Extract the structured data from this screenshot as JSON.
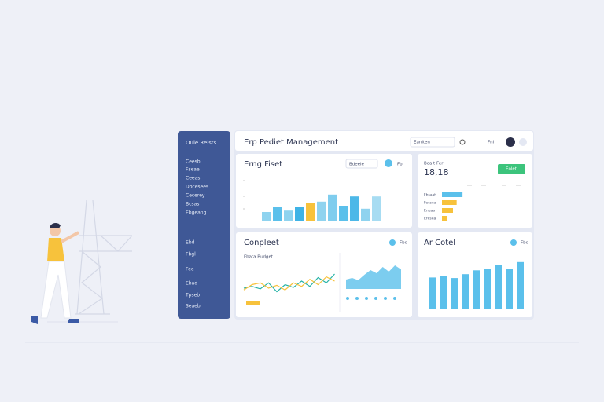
{
  "sidebar": {
    "title": "Oule Relsts",
    "items": [
      "Ceesb",
      "Fseae",
      "Ceeas",
      "Dbcesees",
      "Cecerey",
      "Bcsas",
      "Ebgeang"
    ],
    "lower_items": [
      "Ebd",
      "Fbgl",
      "Fee",
      "Ebad",
      "Tpseb",
      "Seaeb"
    ]
  },
  "header": {
    "title": "Erp Pediet Management",
    "search": "Eanlten",
    "button": "Fnl"
  },
  "cards": [
    {
      "title": "Erng Fiset",
      "dropdown": "Bdeele",
      "button": "Fbl",
      "chart": {
        "type": "bar",
        "ylim": [
          0,
          100
        ],
        "values": [
          20,
          30,
          23,
          30,
          40,
          42,
          57,
          33,
          53,
          27,
          53
        ],
        "colors": [
          "#8fd3ef",
          "#5bc0eb",
          "#8fd3ef",
          "#3fb3e6",
          "#f7c23c",
          "#8fd3ef",
          "#7fcdee",
          "#5bc0eb",
          "#4db8e8",
          "#8fd3ef",
          "#a7dcf2"
        ]
      }
    },
    {
      "title": "Boalt Fer",
      "value": "18,18",
      "button": "Eolet",
      "table": {
        "ylim": [
          0,
          30
        ],
        "rows": [
          {
            "label": "Fbsaat",
            "value": 28,
            "color": "#5bc0eb"
          },
          {
            "label": "Fecsea",
            "value": 20,
            "color": "#f7c23c"
          },
          {
            "label": "Eneaa",
            "value": 15,
            "color": "#f7c23c"
          },
          {
            "label": "Eresea",
            "value": 7,
            "color": "#f7c23c"
          }
        ]
      }
    },
    {
      "title": "Conpleet",
      "button": "Fbd",
      "subtitle": "Fbata Budget",
      "chart": {
        "type": "line",
        "ylim": [
          0,
          100
        ],
        "series": [
          {
            "color": "#26b3a6",
            "values": [
              40,
              45,
              38,
              55,
              30,
              50,
              42,
              60,
              45,
              70,
              55,
              80
            ]
          },
          {
            "color": "#f7c23c",
            "values": [
              35,
              50,
              55,
              40,
              48,
              35,
              55,
              45,
              65,
              50,
              72,
              60
            ]
          }
        ]
      },
      "area": {
        "type": "area",
        "ylim": [
          0,
          100
        ],
        "color": "#5bc0eb",
        "values": [
          30,
          35,
          28,
          45,
          60,
          50,
          70,
          55,
          75,
          62
        ]
      }
    },
    {
      "title": "Ar Cotel",
      "button": "Fbd",
      "chart": {
        "type": "bar",
        "ylim": [
          0,
          100
        ],
        "color": "#5bc0eb",
        "values": [
          58,
          60,
          57,
          64,
          71,
          74,
          81,
          74,
          86
        ]
      }
    }
  ]
}
